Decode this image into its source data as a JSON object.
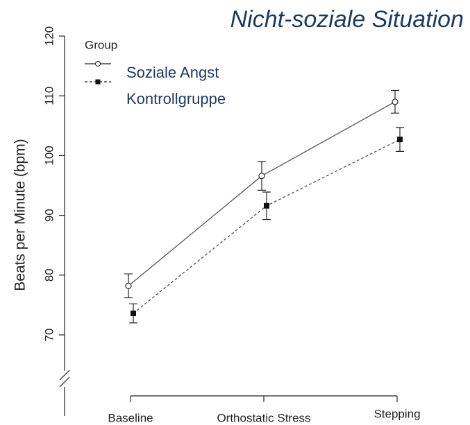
{
  "chart_data": {
    "type": "line",
    "title": "Nicht-soziale Situation",
    "ylabel": "Beats per Minute (bpm)",
    "legend_title": "Group",
    "categories": [
      "Baseline",
      "Orthostatic Stress",
      "Stepping"
    ],
    "series": [
      {
        "name": "Soziale Angst",
        "color": "#555555",
        "marker": "circle",
        "dashed": false,
        "values": [
          78.2,
          96.6,
          109.0
        ],
        "errors": [
          2.0,
          2.4,
          1.9
        ]
      },
      {
        "name": "Kontrollgruppe",
        "color": "#555555",
        "marker": "square",
        "dashed": true,
        "values": [
          73.6,
          91.6,
          102.7
        ],
        "errors": [
          1.6,
          2.3,
          2.0
        ]
      }
    ],
    "ylim": [
      64,
      120
    ],
    "yticks": [
      70,
      80,
      90,
      100,
      110,
      120
    ],
    "legend": "upper left"
  }
}
